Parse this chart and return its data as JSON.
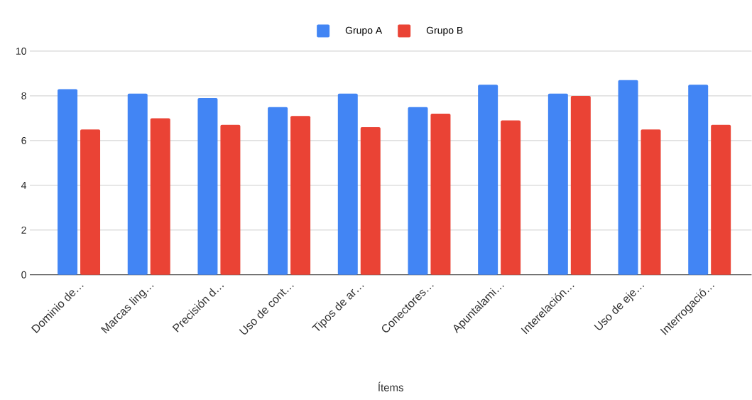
{
  "chart_data": {
    "type": "bar",
    "xlabel": "Ítems",
    "categories": [
      "Dominio de…",
      "Marcas ling…",
      "Precisión d…",
      "Uso de cont…",
      "Tipos de ar…",
      "Conectores…",
      "Apuntalami…",
      "Interelación…",
      "Uso de eje…",
      "Interrogació…"
    ],
    "series": [
      {
        "name": "Grupo A",
        "color": "#4285f4",
        "values": [
          8.3,
          8.1,
          7.9,
          7.5,
          8.1,
          7.5,
          8.5,
          8.1,
          8.7,
          8.5
        ]
      },
      {
        "name": "Grupo B",
        "color": "#ea4335",
        "values": [
          6.5,
          7.0,
          6.7,
          7.1,
          6.6,
          7.2,
          6.9,
          8.0,
          6.5,
          6.7
        ]
      }
    ],
    "ylim": [
      0,
      10
    ],
    "yticks": [
      0,
      2,
      4,
      6,
      8,
      10
    ],
    "grid": "y",
    "legend": "top"
  }
}
